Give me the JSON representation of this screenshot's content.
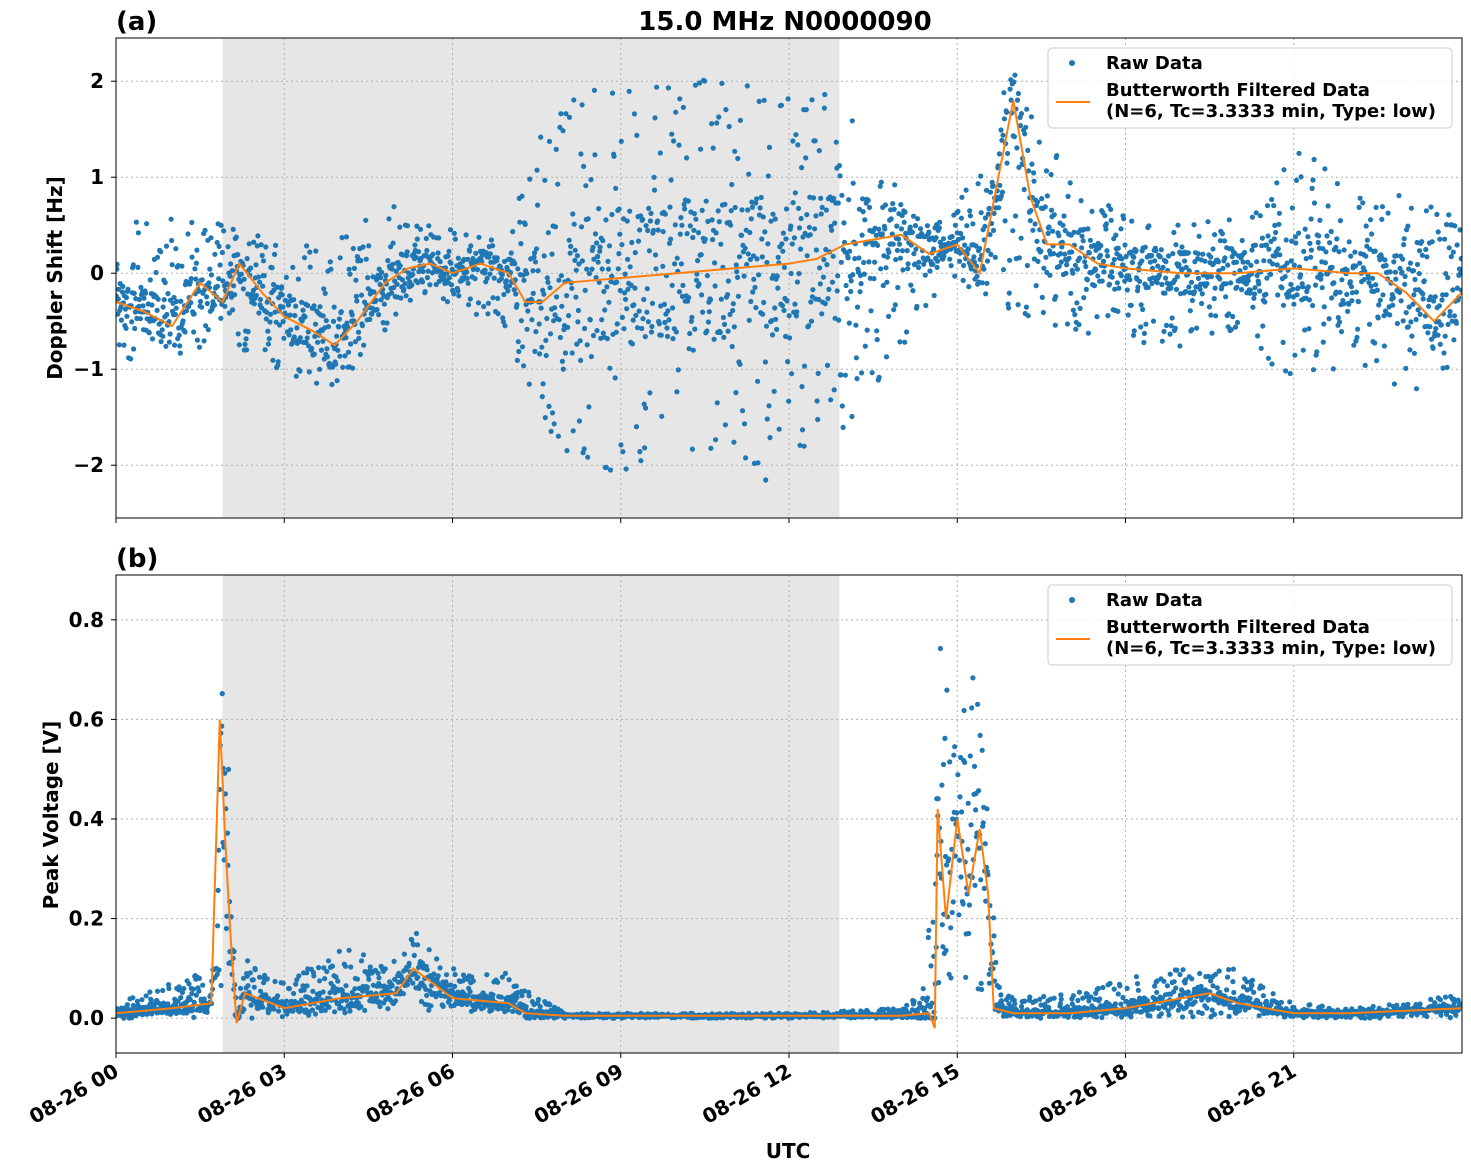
{
  "figure": {
    "title": "15.0 MHz N0000090",
    "xlabel": "UTC",
    "x_ticks": [
      "08-26 00",
      "08-26 03",
      "08-26 06",
      "08-26 09",
      "08-26 12",
      "08-26 15",
      "08-26 18",
      "08-26 21"
    ],
    "legend": {
      "raw": "Raw Data",
      "filtered_line1": "Butterworth Filtered Data",
      "filtered_line2": "(N=6, Tc=3.3333 min, Type: low)"
    },
    "colors": {
      "raw": "#1f77b4",
      "filtered": "#ff7f0e",
      "shade": "#e6e6e6",
      "grid": "#b0b0b0"
    }
  },
  "chart_data": [
    {
      "type": "scatter",
      "panel_label": "(a)",
      "ylabel": "Doppler Shift [Hz]",
      "xlim_hours_utc": [
        0,
        24
      ],
      "ylim": [
        -2.55,
        2.45
      ],
      "y_ticks": [
        "2",
        "1",
        "0",
        "−1",
        "−2"
      ],
      "y_tick_values": [
        2,
        1,
        0,
        -1,
        -2
      ],
      "grid": true,
      "legend_position": "top-right",
      "shaded_interval_hours_utc": [
        1.9,
        12.9
      ],
      "series": [
        {
          "name": "Raw Data",
          "note_band": "scatter envelope (min / max) by hour",
          "x": [
            0,
            1,
            2,
            3,
            4,
            5,
            6,
            7,
            7.5,
            8,
            9,
            10,
            11,
            12,
            13,
            14,
            14.8,
            15.5,
            16,
            17,
            18,
            19,
            20,
            21,
            22,
            23,
            24
          ],
          "lower": [
            -0.9,
            -0.95,
            -0.7,
            -1.1,
            -1.2,
            -0.5,
            -0.3,
            -0.6,
            -1.6,
            -1.9,
            -2.1,
            -2.0,
            -2.1,
            -2.2,
            -1.6,
            -0.9,
            0.0,
            -0.3,
            -0.4,
            -0.6,
            -0.7,
            -0.8,
            -0.6,
            -1.2,
            -1.0,
            -1.3,
            -1.0
          ],
          "upper": [
            0.5,
            0.6,
            0.55,
            0.3,
            0.4,
            0.75,
            0.45,
            0.3,
            1.6,
            1.8,
            2.0,
            2.1,
            2.1,
            2.15,
            1.7,
            0.9,
            0.5,
            1.3,
            2.2,
            1.0,
            0.6,
            0.5,
            0.6,
            1.4,
            0.9,
            0.8,
            0.6
          ]
        },
        {
          "name": "Butterworth Filtered Data (N=6, Tc=3.3333 min, Type: low)",
          "x": [
            0,
            0.5,
            1.0,
            1.5,
            1.9,
            2.2,
            2.6,
            3.0,
            3.5,
            3.9,
            4.3,
            4.8,
            5.2,
            5.6,
            6.0,
            6.5,
            7.0,
            7.3,
            7.6,
            8.0,
            9.0,
            10.0,
            11.0,
            12.0,
            12.5,
            13.0,
            13.5,
            14.0,
            14.5,
            15.0,
            15.4,
            15.7,
            16.0,
            16.3,
            16.6,
            17.0,
            17.5,
            18.0,
            19.0,
            20.0,
            21.0,
            22.0,
            22.5,
            23.0,
            23.5,
            24.0
          ],
          "y": [
            -0.3,
            -0.4,
            -0.55,
            -0.1,
            -0.3,
            0.1,
            -0.2,
            -0.45,
            -0.6,
            -0.75,
            -0.5,
            -0.1,
            0.05,
            0.1,
            0.0,
            0.1,
            0.0,
            -0.3,
            -0.3,
            -0.1,
            -0.05,
            0.0,
            0.05,
            0.1,
            0.15,
            0.3,
            0.35,
            0.4,
            0.2,
            0.3,
            0.0,
            0.9,
            1.8,
            0.8,
            0.3,
            0.3,
            0.1,
            0.05,
            0.0,
            0.0,
            0.05,
            0.0,
            0.0,
            -0.2,
            -0.5,
            -0.2
          ]
        }
      ]
    },
    {
      "type": "scatter",
      "panel_label": "(b)",
      "ylabel": "Peak Voltage [V]",
      "xlim_hours_utc": [
        0,
        24
      ],
      "ylim": [
        -0.07,
        0.89
      ],
      "y_ticks": [
        "0.8",
        "0.6",
        "0.4",
        "0.2",
        "0.0"
      ],
      "y_tick_values": [
        0.8,
        0.6,
        0.4,
        0.2,
        0.0
      ],
      "grid": true,
      "legend_position": "top-right",
      "shaded_interval_hours_utc": [
        1.9,
        12.9
      ],
      "series": [
        {
          "name": "Raw Data",
          "note_band": "scatter envelope (min / max)",
          "x": [
            0,
            1.0,
            1.8,
            1.9,
            2.0,
            2.1,
            2.2,
            2.5,
            3.0,
            4.0,
            5.0,
            5.3,
            6.0,
            7.0,
            7.3,
            8.0,
            10.0,
            12.0,
            14.0,
            14.3,
            14.6,
            14.7,
            15.0,
            15.3,
            15.6,
            15.7,
            16.0,
            17.0,
            18.0,
            19.0,
            20.0,
            21.0,
            22.0,
            23.0,
            24.0
          ],
          "lower": [
            0.0,
            0.0,
            0.0,
            0.05,
            0.1,
            0.0,
            0.0,
            0.0,
            0.0,
            0.01,
            0.01,
            0.01,
            0.01,
            0.01,
            0.0,
            0.0,
            0.0,
            0.0,
            0.0,
            0.0,
            0.0,
            0.05,
            0.05,
            0.05,
            0.05,
            0.0,
            0.0,
            0.0,
            0.0,
            0.0,
            0.0,
            0.0,
            0.0,
            0.0,
            0.0
          ],
          "upper": [
            0.03,
            0.07,
            0.1,
            0.85,
            0.65,
            0.2,
            0.15,
            0.1,
            0.07,
            0.14,
            0.12,
            0.19,
            0.1,
            0.09,
            0.06,
            0.01,
            0.01,
            0.01,
            0.02,
            0.05,
            0.3,
            0.81,
            0.55,
            0.78,
            0.4,
            0.08,
            0.04,
            0.05,
            0.08,
            0.1,
            0.1,
            0.03,
            0.02,
            0.03,
            0.05
          ]
        },
        {
          "name": "Butterworth Filtered Data (N=6, Tc=3.3333 min, Type: low)",
          "x": [
            0,
            1.0,
            1.7,
            1.85,
            1.95,
            2.05,
            2.15,
            2.3,
            3.0,
            4.0,
            5.0,
            5.3,
            6.0,
            7.0,
            7.3,
            8.0,
            12.0,
            14.0,
            14.5,
            14.6,
            14.65,
            14.8,
            15.0,
            15.2,
            15.4,
            15.55,
            15.65,
            16.0,
            17.0,
            18.0,
            19.0,
            19.5,
            20.0,
            21.0,
            22.0,
            23.0,
            24.0
          ],
          "y": [
            0.01,
            0.02,
            0.03,
            0.6,
            0.35,
            0.15,
            -0.01,
            0.05,
            0.02,
            0.04,
            0.05,
            0.1,
            0.04,
            0.03,
            0.01,
            0.005,
            0.005,
            0.005,
            0.01,
            -0.02,
            0.42,
            0.2,
            0.4,
            0.25,
            0.38,
            0.25,
            0.02,
            0.01,
            0.01,
            0.02,
            0.04,
            0.05,
            0.03,
            0.01,
            0.01,
            0.015,
            0.02
          ]
        }
      ]
    }
  ]
}
